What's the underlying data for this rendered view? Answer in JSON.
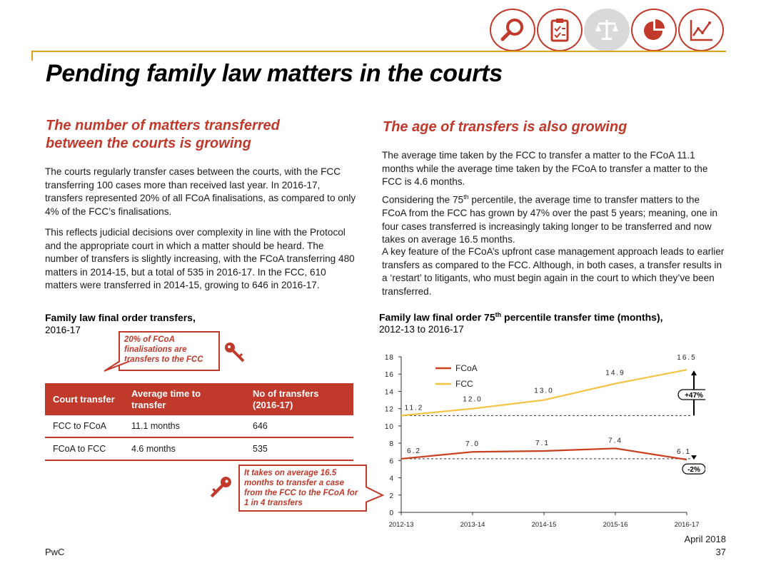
{
  "title": "Pending family law matters in the courts",
  "icons": [
    "search-icon",
    "clipboard-icon",
    "scales-icon",
    "pie-chart-icon",
    "line-chart-icon"
  ],
  "left": {
    "heading_line1": "The number of matters transferred",
    "heading_line2": "between the courts is growing",
    "para1": "The courts regularly transfer cases between the courts, with the FCC transferring 100 cases more than received last year. In 2016-17, transfers represented 20% of all FCoA finalisations, as compared to only 4% of the FCC’s finalisations.",
    "para2": "This reflects judicial decisions over complexity in line with the Protocol and the appropriate court in which a matter should be heard. The number of transfers is slightly increasing, with the FCoA transferring 480 matters in 2014-15, but a total of 535 in 2016-17. In the FCC, 610 matters were transferred in 2014-15, growing to 646 in 2016-17.",
    "table_title": "Family law final order transfers,",
    "table_period": "2016-17",
    "callout1": "20% of FCoA finalisations are transfers to the FCC",
    "callout2": "It takes on average 16.5 months to transfer a case from the FCC to the FCoA for 1 in 4 transfers",
    "table": {
      "headers": [
        "Court transfer",
        "Average time to transfer",
        "No of transfers (2016-17)"
      ],
      "rows": [
        [
          "FCC to FCoA",
          "11.1 months",
          "646"
        ],
        [
          "FCoA to FCC",
          "4.6 months",
          "535"
        ]
      ]
    }
  },
  "right": {
    "heading": "The age of transfers is also growing",
    "para1": "The average time taken by the FCC to transfer a matter to the FCoA 11.1 months while the average time taken by the FCoA to transfer a matter to the FCC is 4.6 months.",
    "para2_a": "Considering the 75",
    "para2_sup": "th",
    "para2_b": " percentile, the average time to transfer matters to the FCoA from the FCC has grown by 47% over the past 5 years; meaning, one in four cases transferred is increasingly taking longer to be transferred and now takes on average 16.5 months.",
    "para3": "A key feature of the FCoA’s upfront case management approach leads to earlier transfers as compared to the FCC. Although, in both cases, a transfer results in a ‘restart’ to litigants, who must begin again in the court to which they’ve been transferred.",
    "chart_title_a": "Family law final order 75",
    "chart_title_sup": "th",
    "chart_title_b": " percentile transfer time (months),",
    "chart_period": "2012-13 to 2016-17"
  },
  "chart_data": {
    "type": "line",
    "categories": [
      "2012-13",
      "2013-14",
      "2014-15",
      "2015-16",
      "2016-17"
    ],
    "series": [
      {
        "name": "FCoA",
        "values": [
          6.2,
          7.0,
          7.1,
          7.4,
          6.1
        ],
        "labels": [
          "6.2",
          "7.0",
          "7.1",
          "7.4",
          "6.1"
        ],
        "color": "#c8401e"
      },
      {
        "name": "FCC",
        "values": [
          11.2,
          12.0,
          13.0,
          14.9,
          16.5
        ],
        "labels": [
          "11.2",
          "12.0",
          "13.0",
          "14.9",
          "16.5"
        ],
        "color": "#f5c242"
      }
    ],
    "ylim": [
      0,
      18
    ],
    "yticks": [
      "0",
      "2",
      "4",
      "6",
      "8",
      "10",
      "12",
      "14",
      "16",
      "18"
    ],
    "annotations": [
      "+47%",
      "-2%"
    ],
    "legend_position": "top-left"
  },
  "footer": {
    "left": "PwC",
    "date": "April 2018",
    "page": "37"
  }
}
